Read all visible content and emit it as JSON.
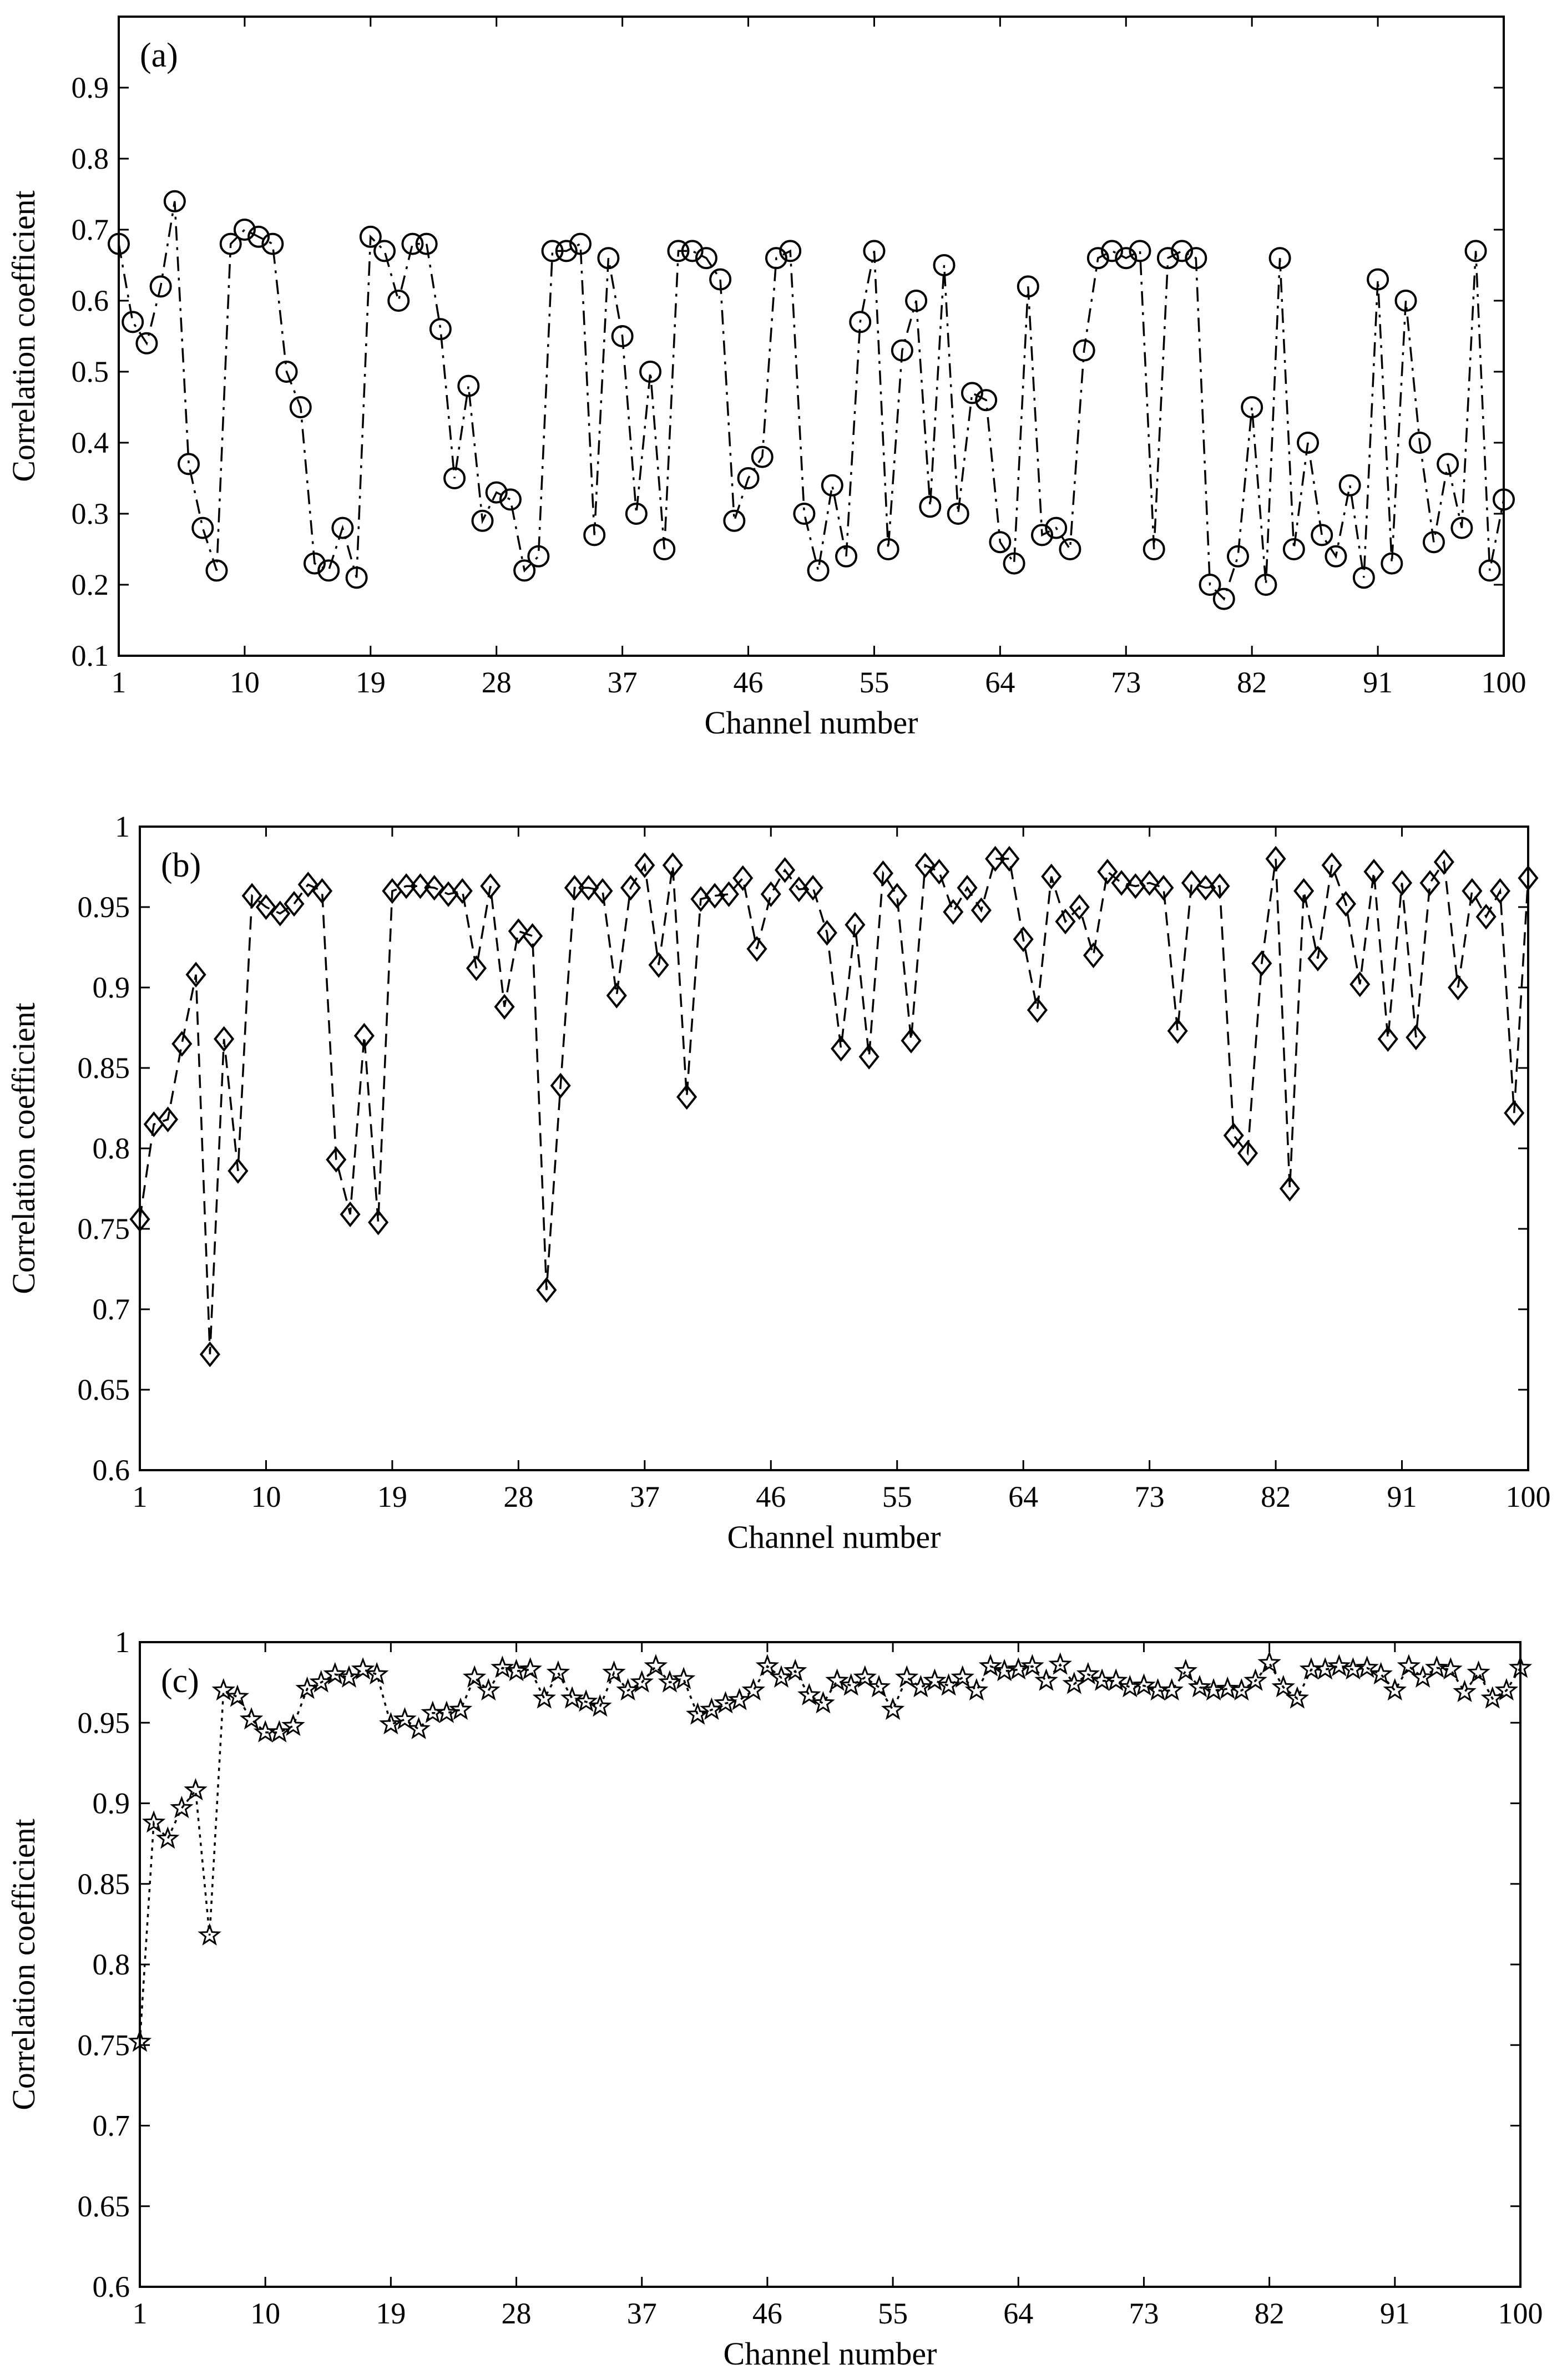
{
  "chart_data": [
    {
      "type": "line",
      "panel_label": "(a)",
      "xlabel": "Channel number",
      "ylabel": "Correlation coefficient",
      "xlim": [
        1,
        100
      ],
      "ylim": [
        0.1,
        1.0
      ],
      "xticks": [
        1,
        10,
        19,
        28,
        37,
        46,
        55,
        64,
        73,
        82,
        91,
        100
      ],
      "yticks": [
        0.1,
        0.2,
        0.3,
        0.4,
        0.5,
        0.6,
        0.7,
        0.8,
        0.9
      ],
      "ytick_labels": [
        "0.1",
        "0.2",
        "0.3",
        "0.4",
        "0.5",
        "0.6",
        "0.7",
        "0.8",
        "0.9"
      ],
      "line_style": "dash-dot",
      "marker": "circle",
      "grid": false,
      "series": [
        {
          "x": [
            1,
            2,
            3,
            4,
            5,
            6,
            7,
            8,
            9,
            10,
            11,
            12,
            13,
            14,
            15,
            16,
            17,
            18,
            19,
            20,
            21,
            22,
            23,
            24,
            25,
            26,
            27,
            28,
            29,
            30,
            31,
            32,
            33,
            34,
            35,
            36,
            37,
            38,
            39,
            40,
            41,
            42,
            43,
            44,
            45,
            46,
            47,
            48,
            49,
            50,
            51,
            52,
            53,
            54,
            55,
            56,
            57,
            58,
            59,
            60,
            61,
            62,
            63,
            64,
            65,
            66,
            67,
            68,
            69,
            70,
            71,
            72,
            73,
            74,
            75,
            76,
            77,
            78,
            79,
            80,
            81,
            82,
            83,
            84,
            85,
            86,
            87,
            88,
            89,
            90,
            91,
            92,
            93,
            94,
            95,
            96,
            97,
            98,
            99,
            100
          ],
          "values": [
            0.68,
            0.57,
            0.54,
            0.62,
            0.74,
            0.37,
            0.28,
            0.22,
            0.68,
            0.7,
            0.69,
            0.68,
            0.5,
            0.45,
            0.23,
            0.22,
            0.28,
            0.21,
            0.69,
            0.67,
            0.6,
            0.68,
            0.68,
            0.56,
            0.35,
            0.48,
            0.29,
            0.33,
            0.32,
            0.22,
            0.24,
            0.67,
            0.67,
            0.68,
            0.27,
            0.66,
            0.55,
            0.3,
            0.5,
            0.25,
            0.67,
            0.67,
            0.66,
            0.63,
            0.29,
            0.35,
            0.38,
            0.66,
            0.67,
            0.3,
            0.22,
            0.34,
            0.24,
            0.57,
            0.67,
            0.25,
            0.53,
            0.6,
            0.31,
            0.65,
            0.3,
            0.47,
            0.46,
            0.26,
            0.23,
            0.62,
            0.27,
            0.28,
            0.25,
            0.53,
            0.66,
            0.67,
            0.66,
            0.67,
            0.25,
            0.66,
            0.67,
            0.66,
            0.2,
            0.18,
            0.24,
            0.45,
            0.2,
            0.66,
            0.25,
            0.4,
            0.27,
            0.24,
            0.34,
            0.21,
            0.63,
            0.23,
            0.6,
            0.4,
            0.26,
            0.37,
            0.28,
            0.67,
            0.22,
            0.32
          ]
        }
      ]
    },
    {
      "type": "line",
      "panel_label": "(b)",
      "xlabel": "Channel number",
      "ylabel": "Correlation coefficient",
      "xlim": [
        1,
        100
      ],
      "ylim": [
        0.6,
        1.0
      ],
      "xticks": [
        1,
        10,
        19,
        28,
        37,
        46,
        55,
        64,
        73,
        82,
        91,
        100
      ],
      "yticks": [
        0.6,
        0.65,
        0.7,
        0.75,
        0.8,
        0.85,
        0.9,
        0.95,
        1.0
      ],
      "ytick_labels": [
        "0.6",
        "0.65",
        "0.7",
        "0.75",
        "0.8",
        "0.85",
        "0.9",
        "0.95",
        "1"
      ],
      "line_style": "dashed",
      "marker": "diamond",
      "grid": false,
      "series": [
        {
          "x": [
            1,
            2,
            3,
            4,
            5,
            6,
            7,
            8,
            9,
            10,
            11,
            12,
            13,
            14,
            15,
            16,
            17,
            18,
            19,
            20,
            21,
            22,
            23,
            24,
            25,
            26,
            27,
            28,
            29,
            30,
            31,
            32,
            33,
            34,
            35,
            36,
            37,
            38,
            39,
            40,
            41,
            42,
            43,
            44,
            45,
            46,
            47,
            48,
            49,
            50,
            51,
            52,
            53,
            54,
            55,
            56,
            57,
            58,
            59,
            60,
            61,
            62,
            63,
            64,
            65,
            66,
            67,
            68,
            69,
            70,
            71,
            72,
            73,
            74,
            75,
            76,
            77,
            78,
            79,
            80,
            81,
            82,
            83,
            84,
            85,
            86,
            87,
            88,
            89,
            90,
            91,
            92,
            93,
            94,
            95,
            96,
            97,
            98,
            99,
            100
          ],
          "values": [
            0.756,
            0.815,
            0.818,
            0.865,
            0.908,
            0.672,
            0.868,
            0.786,
            0.957,
            0.95,
            0.946,
            0.952,
            0.964,
            0.96,
            0.793,
            0.759,
            0.87,
            0.754,
            0.96,
            0.963,
            0.963,
            0.962,
            0.958,
            0.96,
            0.912,
            0.963,
            0.888,
            0.935,
            0.932,
            0.712,
            0.839,
            0.962,
            0.962,
            0.96,
            0.895,
            0.962,
            0.976,
            0.914,
            0.976,
            0.832,
            0.955,
            0.957,
            0.958,
            0.968,
            0.924,
            0.958,
            0.973,
            0.961,
            0.962,
            0.934,
            0.862,
            0.939,
            0.857,
            0.971,
            0.957,
            0.867,
            0.976,
            0.972,
            0.947,
            0.962,
            0.948,
            0.98,
            0.98,
            0.93,
            0.886,
            0.969,
            0.941,
            0.95,
            0.92,
            0.972,
            0.965,
            0.963,
            0.965,
            0.962,
            0.873,
            0.965,
            0.962,
            0.963,
            0.808,
            0.797,
            0.915,
            0.98,
            0.775,
            0.96,
            0.918,
            0.976,
            0.952,
            0.902,
            0.972,
            0.868,
            0.965,
            0.869,
            0.965,
            0.978,
            0.9,
            0.96,
            0.944,
            0.96,
            0.822,
            0.968
          ]
        }
      ]
    },
    {
      "type": "line",
      "panel_label": "(c)",
      "xlabel": "Channel number",
      "ylabel": "Correlation coefficient",
      "xlim": [
        1,
        100
      ],
      "ylim": [
        0.6,
        1.0
      ],
      "xticks": [
        1,
        10,
        19,
        28,
        37,
        46,
        55,
        64,
        73,
        82,
        91,
        100
      ],
      "yticks": [
        0.6,
        0.65,
        0.7,
        0.75,
        0.8,
        0.85,
        0.9,
        0.95,
        1.0
      ],
      "ytick_labels": [
        "0.6",
        "0.65",
        "0.7",
        "0.75",
        "0.8",
        "0.85",
        "0.9",
        "0.95",
        "1"
      ],
      "line_style": "dotted",
      "marker": "pentagram",
      "grid": false,
      "series": [
        {
          "x": [
            1,
            2,
            3,
            4,
            5,
            6,
            7,
            8,
            9,
            10,
            11,
            12,
            13,
            14,
            15,
            16,
            17,
            18,
            19,
            20,
            21,
            22,
            23,
            24,
            25,
            26,
            27,
            28,
            29,
            30,
            31,
            32,
            33,
            34,
            35,
            36,
            37,
            38,
            39,
            40,
            41,
            42,
            43,
            44,
            45,
            46,
            47,
            48,
            49,
            50,
            51,
            52,
            53,
            54,
            55,
            56,
            57,
            58,
            59,
            60,
            61,
            62,
            63,
            64,
            65,
            66,
            67,
            68,
            69,
            70,
            71,
            72,
            73,
            74,
            75,
            76,
            77,
            78,
            79,
            80,
            81,
            82,
            83,
            84,
            85,
            86,
            87,
            88,
            89,
            90,
            91,
            92,
            93,
            94,
            95,
            96,
            97,
            98,
            99,
            100
          ],
          "values": [
            0.752,
            0.888,
            0.878,
            0.897,
            0.908,
            0.818,
            0.97,
            0.966,
            0.952,
            0.944,
            0.944,
            0.948,
            0.971,
            0.975,
            0.98,
            0.978,
            0.983,
            0.98,
            0.949,
            0.952,
            0.946,
            0.956,
            0.956,
            0.958,
            0.978,
            0.97,
            0.984,
            0.982,
            0.983,
            0.965,
            0.981,
            0.965,
            0.963,
            0.96,
            0.981,
            0.97,
            0.975,
            0.985,
            0.975,
            0.977,
            0.955,
            0.958,
            0.962,
            0.964,
            0.97,
            0.985,
            0.978,
            0.982,
            0.967,
            0.962,
            0.976,
            0.973,
            0.978,
            0.972,
            0.958,
            0.978,
            0.972,
            0.976,
            0.973,
            0.978,
            0.97,
            0.985,
            0.982,
            0.983,
            0.985,
            0.976,
            0.986,
            0.974,
            0.98,
            0.976,
            0.976,
            0.972,
            0.973,
            0.97,
            0.97,
            0.982,
            0.972,
            0.97,
            0.971,
            0.97,
            0.976,
            0.987,
            0.972,
            0.965,
            0.983,
            0.983,
            0.985,
            0.983,
            0.984,
            0.98,
            0.97,
            0.985,
            0.978,
            0.984,
            0.983,
            0.969,
            0.981,
            0.965,
            0.97,
            0.984
          ]
        }
      ]
    }
  ]
}
